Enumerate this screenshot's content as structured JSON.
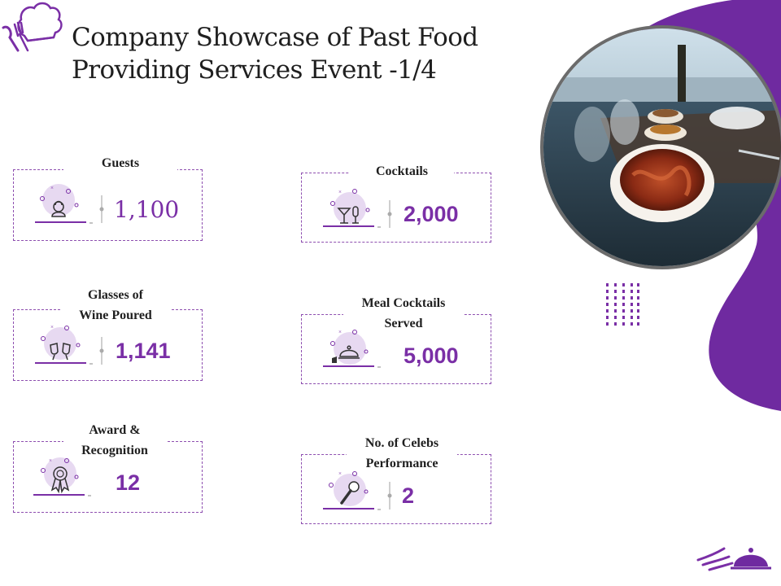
{
  "title": "Company Showcase of Past Food Providing Services Event -1/4",
  "title_lines": [
    "Company Showcase of Past Food",
    "Providing Services Event -1/4"
  ],
  "colors": {
    "accent": "#7a2fa6",
    "blob": "#6f2aa0",
    "frame": "#8e4fb0"
  },
  "stats": [
    {
      "label_lines": [
        "Guests"
      ],
      "value": "1,100",
      "icon": "guest-person-icon"
    },
    {
      "label_lines": [
        "Cocktails"
      ],
      "value": "2,000",
      "icon": "cocktail-glasses-icon"
    },
    {
      "label_lines": [
        "Glasses of",
        "Wine Poured"
      ],
      "value": "1,141",
      "icon": "wine-toast-icon"
    },
    {
      "label_lines": [
        "Meal Cocktails",
        "Served"
      ],
      "value": "5,000",
      "icon": "serving-cloche-icon"
    },
    {
      "label_lines": [
        "Award &",
        "Recognition"
      ],
      "value": "12",
      "icon": "award-ribbon-icon"
    },
    {
      "label_lines": [
        "No. of Celebs",
        "Performance"
      ],
      "value": "2",
      "icon": "microphone-icon"
    }
  ]
}
